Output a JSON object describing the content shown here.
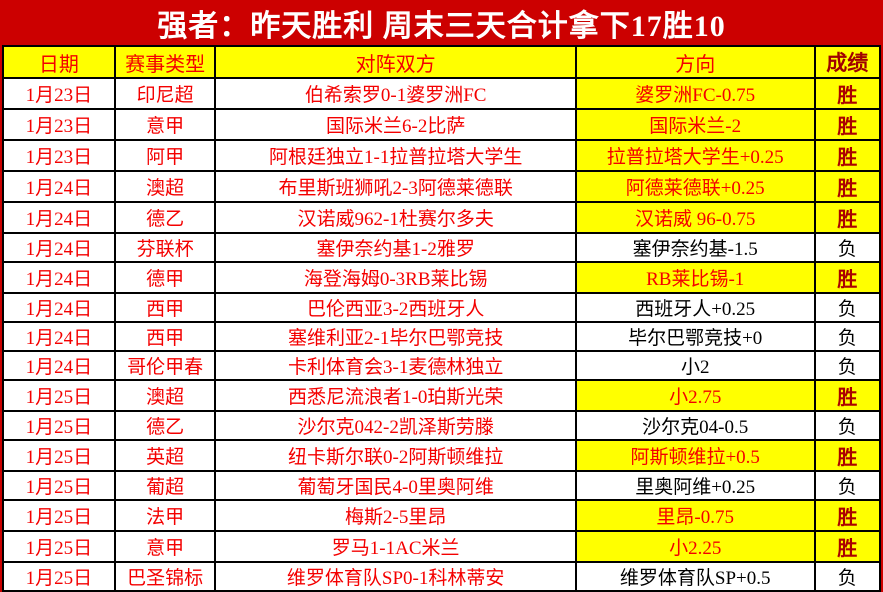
{
  "banner": {
    "title": "强者：昨天胜利 周末三天合计拿下17胜10"
  },
  "colors": {
    "background_red": "#cc0000",
    "highlight_yellow": "#ffff00",
    "text_red": "#f40000",
    "win_dark_red": "#aa0000",
    "loss_black": "#000000",
    "title_white": "#ffffff"
  },
  "table": {
    "headers": {
      "date": "日期",
      "league": "赛事类型",
      "match": "对阵双方",
      "direction": "方向",
      "result": "成绩"
    },
    "rows": [
      {
        "date": "1月23日",
        "league": "印尼超",
        "match": "伯希索罗0-1婆罗洲FC",
        "direction": "婆罗洲FC-0.75",
        "result": "胜",
        "win": true
      },
      {
        "date": "1月23日",
        "league": "意甲",
        "match": "国际米兰6-2比萨",
        "direction": "国际米兰-2",
        "result": "胜",
        "win": true
      },
      {
        "date": "1月23日",
        "league": "阿甲",
        "match": "阿根廷独立1-1拉普拉塔大学生",
        "direction": "拉普拉塔大学生+0.25",
        "result": "胜",
        "win": true
      },
      {
        "date": "1月24日",
        "league": "澳超",
        "match": "布里斯班狮吼2-3阿德莱德联",
        "direction": "阿德莱德联+0.25",
        "result": "胜",
        "win": true
      },
      {
        "date": "1月24日",
        "league": "德乙",
        "match": "汉诺威962-1杜赛尔多夫",
        "direction": "汉诺威 96-0.75",
        "result": "胜",
        "win": true
      },
      {
        "date": "1月24日",
        "league": "芬联杯",
        "match": "塞伊奈约基1-2雅罗",
        "direction": "塞伊奈约基-1.5",
        "result": "负",
        "win": false
      },
      {
        "date": "1月24日",
        "league": "德甲",
        "match": "海登海姆0-3RB莱比锡",
        "direction": "RB莱比锡-1",
        "result": "胜",
        "win": true
      },
      {
        "date": "1月24日",
        "league": "西甲",
        "match": "巴伦西亚3-2西班牙人",
        "direction": "西班牙人+0.25",
        "result": "负",
        "win": false
      },
      {
        "date": "1月24日",
        "league": "西甲",
        "match": "塞维利亚2-1毕尔巴鄂竞技",
        "direction": "毕尔巴鄂竞技+0",
        "result": "负",
        "win": false
      },
      {
        "date": "1月24日",
        "league": "哥伦甲春",
        "match": "卡利体育会3-1麦德林独立",
        "direction": "小2",
        "result": "负",
        "win": false
      },
      {
        "date": "1月25日",
        "league": "澳超",
        "match": "西悉尼流浪者1-0珀斯光荣",
        "direction": "小2.75",
        "result": "胜",
        "win": true
      },
      {
        "date": "1月25日",
        "league": "德乙",
        "match": "沙尔克042-2凯泽斯劳滕",
        "direction": "沙尔克04-0.5",
        "result": "负",
        "win": false
      },
      {
        "date": "1月25日",
        "league": "英超",
        "match": "纽卡斯尔联0-2阿斯顿维拉",
        "direction": "阿斯顿维拉+0.5",
        "result": "胜",
        "win": true
      },
      {
        "date": "1月25日",
        "league": "葡超",
        "match": "葡萄牙国民4-0里奥阿维",
        "direction": "里奥阿维+0.25",
        "result": "负",
        "win": false
      },
      {
        "date": "1月25日",
        "league": "法甲",
        "match": "梅斯2-5里昂",
        "direction": "里昂-0.75",
        "result": "胜",
        "win": true
      },
      {
        "date": "1月25日",
        "league": "意甲",
        "match": "罗马1-1AC米兰",
        "direction": "小2.25",
        "result": "胜",
        "win": true
      },
      {
        "date": "1月25日",
        "league": "巴圣锦标",
        "match": "维罗体育队SP0-1科林蒂安",
        "direction": "维罗体育队SP+0.5",
        "result": "负",
        "win": false
      }
    ]
  }
}
